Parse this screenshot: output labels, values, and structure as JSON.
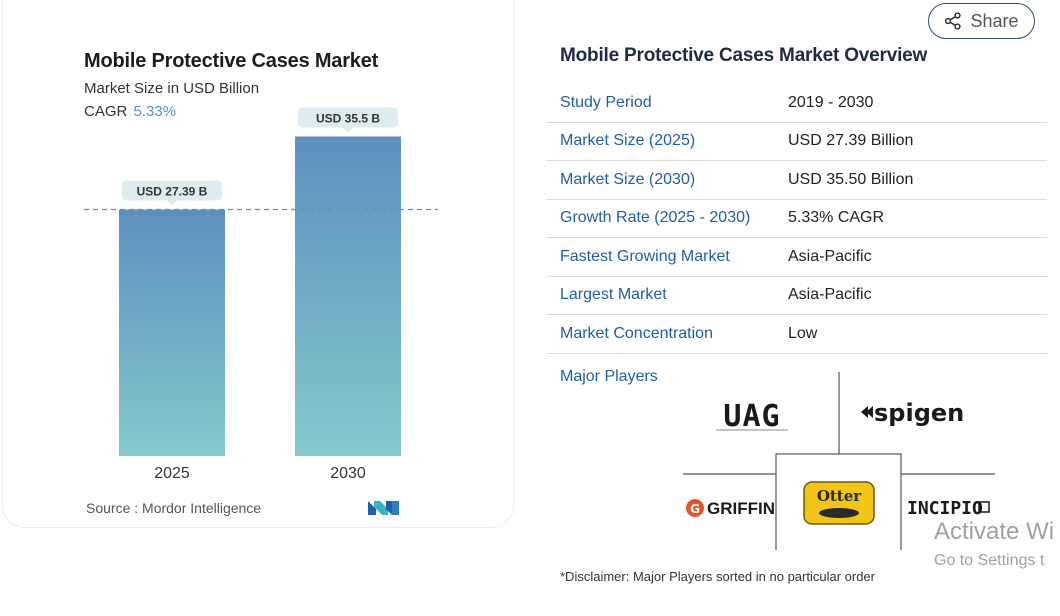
{
  "chart_card": {
    "title": "Mobile Protective Cases Market",
    "subtitle": "Market Size in USD Billion",
    "cagr_label": "CAGR",
    "cagr_value": "5.33%",
    "source": "Source :  Mordor Intelligence"
  },
  "chart_data": {
    "type": "bar",
    "title": "Mobile Protective Cases Market",
    "subtitle": "Market Size in USD Billion",
    "categories": [
      "2025",
      "2030"
    ],
    "values": [
      27.39,
      35.5
    ],
    "data_labels": [
      "USD 27.39 B",
      "USD 35.5 B"
    ],
    "xlabel": "",
    "ylabel": "",
    "ylim": [
      0,
      40
    ],
    "reference_line_value": 27.39,
    "grid": false,
    "colors": {
      "bar_top": "#5d8fbd",
      "bar_bottom": "#84c9cc",
      "reference_line": "#5b8fc9",
      "label_bg": "#dfecef"
    }
  },
  "share": {
    "label": "Share"
  },
  "overview": {
    "title": "Mobile Protective Cases Market Overview",
    "rows": [
      {
        "key": "Study Period",
        "value": "2019 - 2030"
      },
      {
        "key": "Market Size (2025)",
        "value": "USD 27.39 Billion"
      },
      {
        "key": "Market Size (2030)",
        "value": "USD 35.50 Billion"
      },
      {
        "key": "Growth Rate (2025 - 2030)",
        "value": "5.33% CAGR"
      },
      {
        "key": "Fastest Growing Market",
        "value": "Asia-Pacific"
      },
      {
        "key": "Largest Market",
        "value": "Asia-Pacific"
      },
      {
        "key": "Market Concentration",
        "value": "Low"
      }
    ],
    "players_label": "Major Players",
    "players": [
      "UAG",
      "spigen",
      "GRIFFIN",
      "Otter",
      "INCIPIO"
    ],
    "disclaimer": "*Disclaimer: Major Players sorted in no particular order"
  },
  "watermark": {
    "line1": "Activate Wi",
    "line2": "Go to Settings t"
  },
  "colors": {
    "accent_blue": "#1e5fa8",
    "dark_navy": "#1d2b45"
  }
}
